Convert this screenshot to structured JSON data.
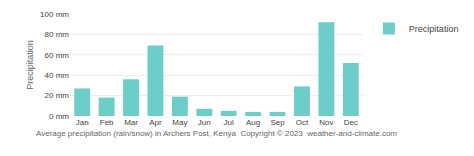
{
  "chart_data": {
    "type": "bar",
    "categories": [
      "Jan",
      "Feb",
      "Mar",
      "Apr",
      "May",
      "Jun",
      "Jul",
      "Aug",
      "Sep",
      "Oct",
      "Nov",
      "Dec"
    ],
    "series": [
      {
        "name": "Precipitation",
        "color": "#6dcdc8",
        "values": [
          27,
          18,
          36,
          69,
          19,
          7,
          5,
          4,
          4,
          29,
          92,
          52
        ]
      }
    ],
    "ylabel": "Precipitation",
    "xlabel": "Average precipitation (rain/snow) in Archers Post, Kenya  Copyright © 2023  weather-and-climate.com",
    "ylim": [
      0,
      100
    ],
    "yticks": [
      {
        "value": 0,
        "label": "0 mm"
      },
      {
        "value": 20,
        "label": "20 mm"
      },
      {
        "value": 40,
        "label": "40 mm"
      },
      {
        "value": 60,
        "label": "60 mm"
      },
      {
        "value": 80,
        "label": "80 mm"
      },
      {
        "value": 100,
        "label": "100 mm"
      }
    ],
    "grid": true,
    "legend": "upper right"
  }
}
